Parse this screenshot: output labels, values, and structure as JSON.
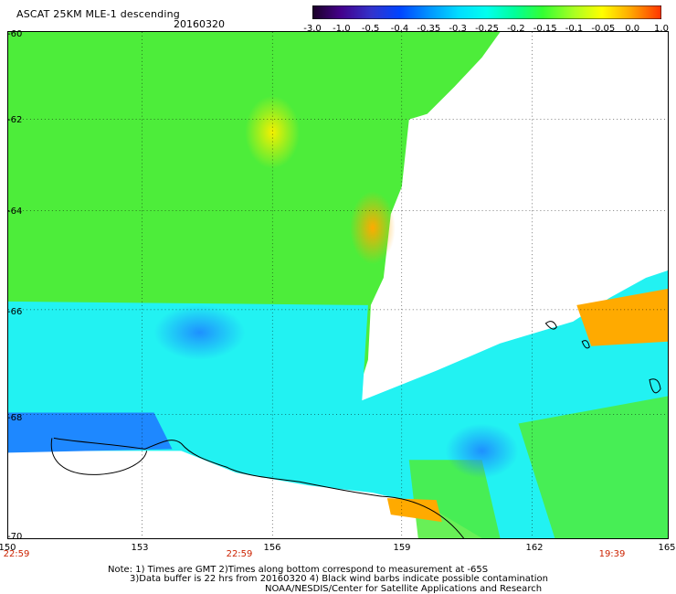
{
  "header": {
    "title": "ASCAT 25KM MLE-1 descending",
    "date": "20160320"
  },
  "colorbar": {
    "ticks": [
      "-3.0",
      "-1.0",
      "-0.5",
      "-0.4",
      "-0.35",
      "-0.3",
      "-0.25",
      "-0.2",
      "-0.15",
      "-0.1",
      "-0.05",
      "0.0",
      "1.0"
    ],
    "colors": [
      "#1a0026",
      "#44008a",
      "#3333cc",
      "#0044ff",
      "#0099ff",
      "#00ddff",
      "#00ffee",
      "#00ff99",
      "#33ff33",
      "#aaff22",
      "#ffff00",
      "#ffaa00",
      "#ff3300"
    ]
  },
  "map": {
    "lat_labels": [
      "-60",
      "-62",
      "-64",
      "-66",
      "-68",
      "-70"
    ],
    "lon_labels": [
      "150",
      "153",
      "156",
      "159",
      "162",
      "165"
    ],
    "time_labels": [
      "22:59",
      "22:59",
      "19:39"
    ],
    "coastline_color": "#000000"
  },
  "notes": {
    "line1": "Note: 1) Times are GMT 2)Times along bottom correspond to measurement at -65S",
    "line2": "3)Data buffer is 22 hrs from 20160320 4) Black wind barbs indicate possible contamination",
    "line3": "NOAA/NESDIS/Center for Satellite Applications and Research"
  }
}
